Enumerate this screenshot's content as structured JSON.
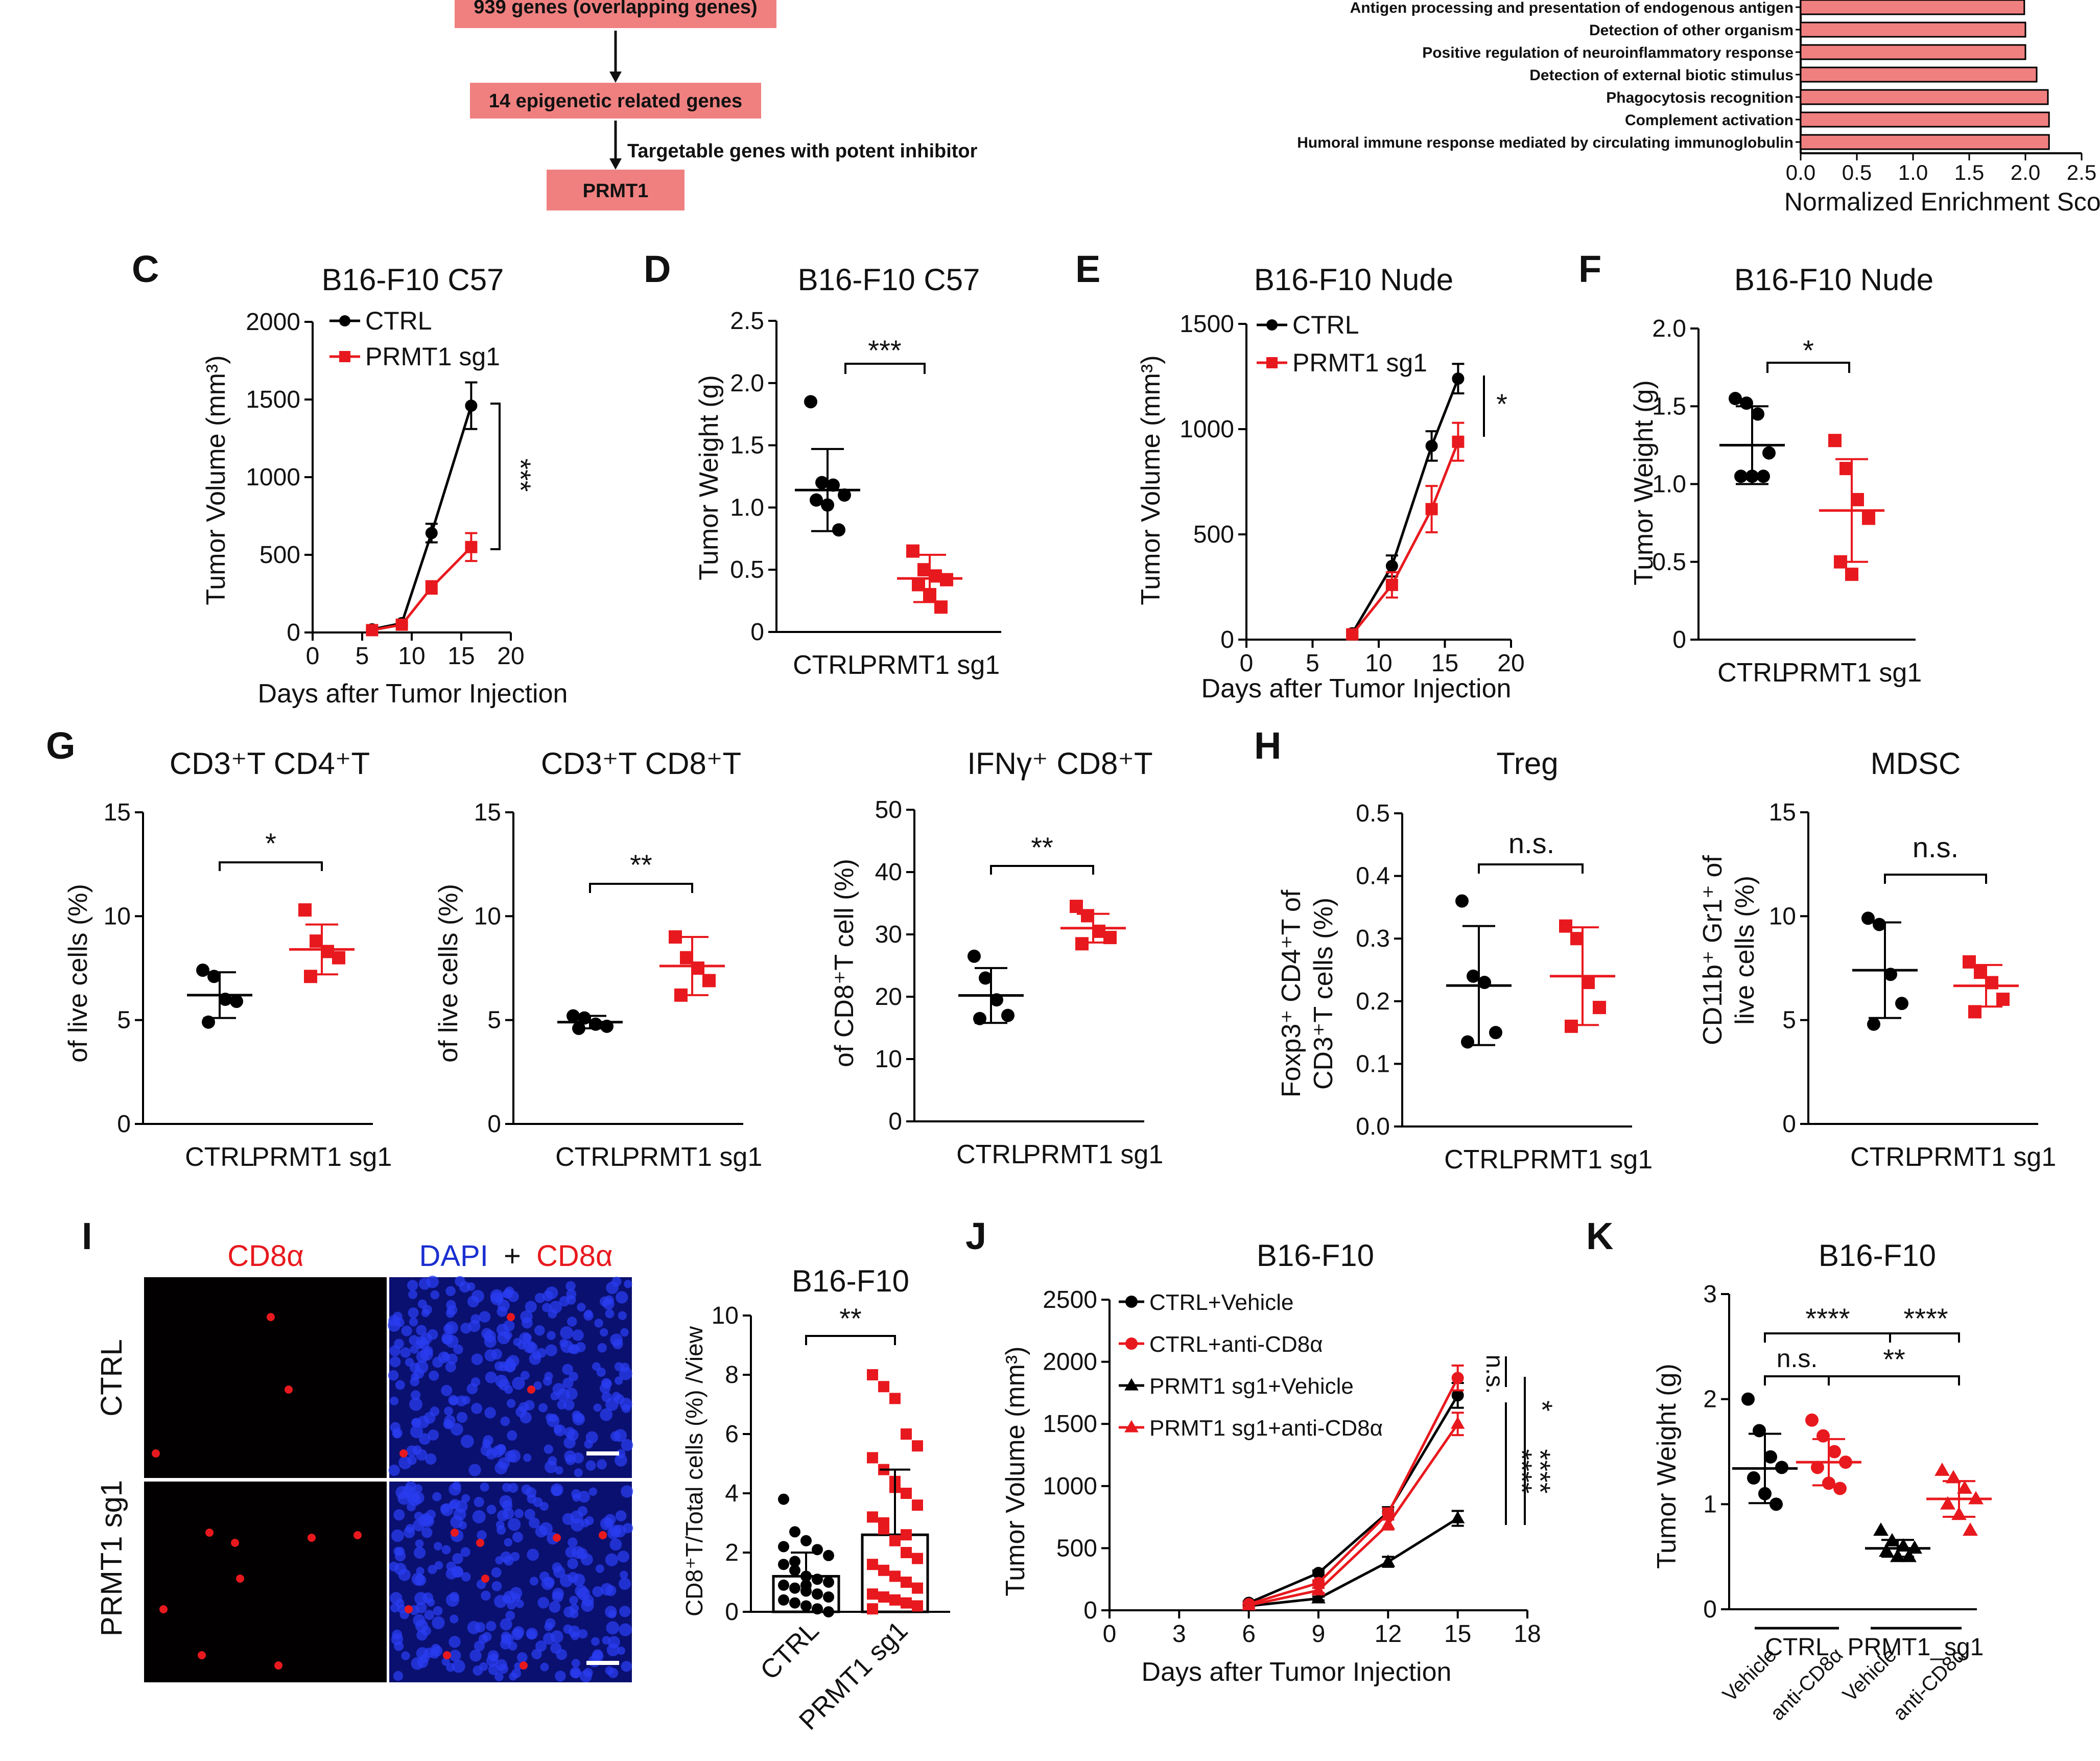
{
  "colors": {
    "ctrl": "#000000",
    "prmt1": "#e8191e",
    "flow_box": "#f08080",
    "gsea_bar": "#f08080",
    "dapi": "#1a2fd0",
    "cd8": "#e8191e"
  },
  "flow": {
    "boxes": [
      "939 genes (overlapping genes)",
      "14 epigenetic related genes",
      "PRMT1"
    ],
    "arrow_note": "Targetable genes with potent inhibitor"
  },
  "panels": {
    "C": {
      "letter": "C",
      "title": "B16-F10 C57",
      "xlabel": "Days after Tumor Injection",
      "ylabel": "Tumor Volume (mm³)",
      "legend": [
        "CTRL",
        "PRMT1 sg1"
      ],
      "sig": "***"
    },
    "D": {
      "letter": "D",
      "title": "B16-F10 C57",
      "ylabel": "Tumor Weight (g)",
      "sig": "***"
    },
    "E": {
      "letter": "E",
      "title": "B16-F10 Nude",
      "xlabel": "Days after Tumor Injection",
      "ylabel": "Tumor Volume (mm³)",
      "legend": [
        "CTRL",
        "PRMT1 sg1"
      ],
      "sig": "*"
    },
    "F": {
      "letter": "F",
      "title": "B16-F10 Nude",
      "ylabel": "Tumor Weight (g)",
      "sig": "*"
    },
    "G": {
      "letter": "G",
      "titles": [
        "CD3⁺T CD4⁺T",
        "CD3⁺T CD8⁺T",
        "IFNγ⁺ CD8⁺T"
      ],
      "ylabels": [
        "of live cells (%)",
        "of live cells (%)",
        "of CD8⁺T cell (%)"
      ],
      "sigs": [
        "*",
        "**",
        "**"
      ]
    },
    "H": {
      "letter": "H",
      "titles": [
        "Treg",
        "MDSC"
      ],
      "ylabels": [
        [
          "Foxp3⁺ CD4⁺T of",
          "CD3⁺T cells (%)"
        ],
        [
          "CD11b⁺ Gr1⁺ of",
          "live cells (%)"
        ]
      ],
      "sigs": [
        "n.s.",
        "n.s."
      ]
    },
    "I": {
      "letter": "I",
      "col_labels": [
        "CD8α",
        "DAPI",
        "+",
        "CD8α"
      ],
      "row_labels": [
        "CTRL",
        "PRMT1 sg1"
      ],
      "bar_title": "B16-F10",
      "bar_ylabel": "CD8⁺T/Total cells (%) /View",
      "sig": "**"
    },
    "J": {
      "letter": "J",
      "title": "B16-F10",
      "xlabel": "Days after Tumor Injection",
      "ylabel": "Tumor Volume (mm³)",
      "legend": [
        "CTRL+Vehicle",
        "CTRL+anti-CD8α",
        "PRMT1 sg1+Vehicle",
        "PRMT1 sg1+anti-CD8α"
      ],
      "sigs": [
        "n.s.",
        "*",
        "****",
        "****"
      ]
    },
    "K": {
      "letter": "K",
      "title": "B16-F10",
      "ylabel": "Tumor Weight (g)",
      "group_labels": [
        "CTRL",
        "PRMT1_sg1"
      ],
      "sub_labels": [
        "Vehicle",
        "anti-CD8α",
        "Vehicle",
        "anti-CD8α"
      ],
      "sigs": [
        "****",
        "****",
        "n.s.",
        "**"
      ]
    }
  },
  "chart_data": [
    {
      "id": "B",
      "type": "bar",
      "orientation": "horizontal",
      "categories": [
        "Antigen processing and presentation of endogenous antigen",
        "Detection of other organism",
        "Positive regulation of neuroinflammatory response",
        "Detection of external biotic stimulus",
        "Phagocytosis recognition",
        "Complement activation",
        "Humoral immune response mediated by circulating immunoglobulin"
      ],
      "values": [
        1.99,
        2.0,
        2.0,
        2.1,
        2.2,
        2.21,
        2.21
      ],
      "xlabel": "Normalized Enrichment Score",
      "xlim": [
        0,
        2.5
      ],
      "xticks": [
        "0.0",
        "0.5",
        "1.0",
        "1.5",
        "2.0",
        "2.5"
      ]
    },
    {
      "id": "C",
      "type": "line",
      "title": "B16-F10 C57",
      "xlim": [
        0,
        20
      ],
      "ylim": [
        0,
        2000
      ],
      "xticks": [
        0,
        5,
        10,
        15,
        20
      ],
      "yticks": [
        0,
        500,
        1000,
        1500,
        2000
      ],
      "series": [
        {
          "name": "CTRL",
          "x": [
            6,
            9,
            12,
            16
          ],
          "y": [
            20,
            60,
            640,
            1460
          ],
          "err": [
            8,
            10,
            60,
            150
          ]
        },
        {
          "name": "PRMT1 sg1",
          "x": [
            6,
            9,
            12,
            16
          ],
          "y": [
            15,
            50,
            290,
            550
          ],
          "err": [
            6,
            10,
            40,
            90
          ]
        }
      ]
    },
    {
      "id": "D",
      "type": "scatter",
      "title": "B16-F10 C57",
      "categories": [
        "CTRL",
        "PRMT1 sg1"
      ],
      "ylim": [
        0,
        2.5
      ],
      "yticks": [
        "0",
        "0.5",
        "1.0",
        "1.5",
        "2.0",
        "2.5"
      ],
      "groups": [
        {
          "points": [
            1.85,
            1.2,
            1.18,
            1.1,
            1.06,
            1.02,
            0.82
          ],
          "mean": 1.14,
          "sd": 0.33
        },
        {
          "points": [
            0.65,
            0.5,
            0.45,
            0.42,
            0.38,
            0.3,
            0.2
          ],
          "mean": 0.43,
          "sd": 0.19
        }
      ]
    },
    {
      "id": "E",
      "type": "line",
      "title": "B16-F10 Nude",
      "xlim": [
        0,
        20
      ],
      "ylim": [
        0,
        1500
      ],
      "xticks": [
        0,
        5,
        10,
        15,
        20
      ],
      "yticks": [
        0,
        500,
        1000,
        1500
      ],
      "series": [
        {
          "name": "CTRL",
          "x": [
            8,
            11,
            14,
            16
          ],
          "y": [
            30,
            350,
            920,
            1240
          ],
          "err": [
            10,
            50,
            70,
            70
          ]
        },
        {
          "name": "PRMT1 sg1",
          "x": [
            8,
            11,
            14,
            16
          ],
          "y": [
            25,
            260,
            620,
            940
          ],
          "err": [
            10,
            60,
            110,
            90
          ]
        }
      ]
    },
    {
      "id": "F",
      "type": "scatter",
      "title": "B16-F10 Nude",
      "categories": [
        "CTRL",
        "PRMT1 sg1"
      ],
      "ylim": [
        0,
        2.0
      ],
      "yticks": [
        "0",
        "0.5",
        "1.0",
        "1.5",
        "2.0"
      ],
      "groups": [
        {
          "points": [
            1.55,
            1.52,
            1.45,
            1.2,
            1.05,
            1.05,
            1.05
          ],
          "mean": 1.25,
          "sd": 0.25
        },
        {
          "points": [
            1.28,
            1.1,
            0.9,
            0.78,
            0.5,
            0.42
          ],
          "mean": 0.83,
          "sd": 0.33
        }
      ]
    },
    {
      "id": "G1",
      "type": "scatter",
      "title": "CD3⁺T CD4⁺T",
      "categories": [
        "CTRL",
        "PRMT1 sg1"
      ],
      "ylim": [
        0,
        15
      ],
      "yticks": [
        "0",
        "5",
        "10",
        "15"
      ],
      "groups": [
        {
          "points": [
            7.4,
            7.1,
            6.0,
            5.9,
            4.9
          ],
          "mean": 6.2,
          "sd": 1.1
        },
        {
          "points": [
            10.3,
            8.8,
            8.3,
            8.0,
            7.1
          ],
          "mean": 8.4,
          "sd": 1.2
        }
      ]
    },
    {
      "id": "G2",
      "type": "scatter",
      "title": "CD3⁺T CD8⁺T",
      "categories": [
        "CTRL",
        "PRMT1 sg1"
      ],
      "ylim": [
        0,
        15
      ],
      "yticks": [
        "0",
        "5",
        "10",
        "15"
      ],
      "groups": [
        {
          "points": [
            5.2,
            5.1,
            4.8,
            4.7,
            4.6
          ],
          "mean": 4.9,
          "sd": 0.3
        },
        {
          "points": [
            9.0,
            8.0,
            7.5,
            6.9,
            6.2
          ],
          "mean": 7.6,
          "sd": 1.4
        }
      ]
    },
    {
      "id": "G3",
      "type": "scatter",
      "title": "IFNγ⁺ CD8⁺T",
      "categories": [
        "CTRL",
        "PRMT1 sg1"
      ],
      "ylim": [
        0,
        50
      ],
      "yticks": [
        "0",
        "10",
        "20",
        "30",
        "40",
        "50"
      ],
      "groups": [
        {
          "points": [
            26.5,
            23.0,
            19.5,
            17.0,
            16.5
          ],
          "mean": 20.2,
          "sd": 4.4
        },
        {
          "points": [
            34.5,
            33.0,
            30.5,
            29.5,
            28.5
          ],
          "mean": 31.0,
          "sd": 2.3
        }
      ]
    },
    {
      "id": "H1",
      "type": "scatter",
      "title": "Treg",
      "categories": [
        "CTRL",
        "PRMT1 sg1"
      ],
      "ylim": [
        0,
        0.5
      ],
      "yticks": [
        "0.0",
        "0.1",
        "0.2",
        "0.3",
        "0.4",
        "0.5"
      ],
      "groups": [
        {
          "points": [
            0.36,
            0.24,
            0.23,
            0.15,
            0.135
          ],
          "mean": 0.225,
          "sd": 0.095
        },
        {
          "points": [
            0.32,
            0.3,
            0.23,
            0.19,
            0.16
          ],
          "mean": 0.24,
          "sd": 0.078
        }
      ]
    },
    {
      "id": "H2",
      "type": "scatter",
      "title": "MDSC",
      "categories": [
        "CTRL",
        "PRMT1 sg1"
      ],
      "ylim": [
        0,
        15
      ],
      "yticks": [
        "0",
        "5",
        "10",
        "15"
      ],
      "groups": [
        {
          "points": [
            9.9,
            9.6,
            7.2,
            5.8,
            4.8
          ],
          "mean": 7.4,
          "sd": 2.3
        },
        {
          "points": [
            7.8,
            7.3,
            6.8,
            6.0,
            5.4
          ],
          "mean": 6.65,
          "sd": 1.0
        }
      ]
    },
    {
      "id": "I",
      "type": "bar",
      "title": "B16-F10",
      "categories": [
        "CTRL",
        "PRMT1 sg1"
      ],
      "ylim": [
        0,
        10
      ],
      "yticks": [
        "0",
        "2",
        "4",
        "6",
        "8",
        "10"
      ],
      "values": [
        1.2,
        2.6
      ],
      "sd": [
        0.8,
        2.2
      ],
      "points": [
        [
          3.8,
          2.7,
          2.4,
          2.1,
          1.9,
          1.6,
          1.4,
          1.2,
          1.1,
          1.0,
          0.9,
          0.8,
          0.7,
          0.6,
          0.5,
          0.4,
          0.3,
          0.2,
          0.1,
          0.0,
          2.2,
          1.7,
          0.9,
          0.6
        ],
        [
          8.0,
          7.6,
          7.2,
          6.0,
          5.6,
          5.2,
          4.8,
          4.4,
          4.0,
          3.6,
          3.2,
          2.8,
          2.4,
          2.0,
          1.8,
          1.6,
          1.4,
          1.2,
          1.0,
          0.8,
          0.6,
          0.5,
          0.4,
          0.3,
          0.2,
          0.1,
          3.0,
          4.2,
          2.6
        ]
      ]
    },
    {
      "id": "J",
      "type": "line",
      "title": "B16-F10",
      "xlim": [
        0,
        18
      ],
      "ylim": [
        0,
        2500
      ],
      "xticks": [
        0,
        3,
        6,
        9,
        12,
        15,
        18
      ],
      "yticks": [
        0,
        500,
        1000,
        1500,
        2000,
        2500
      ],
      "series": [
        {
          "name": "CTRL+Vehicle",
          "x": [
            6,
            9,
            12,
            15
          ],
          "y": [
            60,
            300,
            790,
            1730
          ],
          "err": [
            10,
            20,
            40,
            100
          ]
        },
        {
          "name": "CTRL+anti-CD8α",
          "x": [
            6,
            9,
            12,
            15
          ],
          "y": [
            50,
            220,
            780,
            1870
          ],
          "err": [
            10,
            20,
            40,
            100
          ]
        },
        {
          "name": "PRMT1 sg1+Vehicle",
          "x": [
            6,
            9,
            12,
            15
          ],
          "y": [
            35,
            95,
            390,
            740
          ],
          "err": [
            10,
            15,
            40,
            60
          ]
        },
        {
          "name": "PRMT1 sg1+anti-CD8α",
          "x": [
            6,
            9,
            12,
            15
          ],
          "y": [
            40,
            160,
            690,
            1500
          ],
          "err": [
            10,
            20,
            40,
            90
          ]
        }
      ]
    },
    {
      "id": "K",
      "type": "scatter",
      "title": "B16-F10",
      "ylim": [
        0,
        3
      ],
      "yticks": [
        "0",
        "1",
        "2",
        "3"
      ],
      "groups": [
        {
          "points": [
            2.0,
            1.7,
            1.45,
            1.35,
            1.25,
            1.1,
            1.0
          ],
          "mean": 1.34,
          "sd": 0.33
        },
        {
          "points": [
            1.8,
            1.65,
            1.5,
            1.4,
            1.35,
            1.2,
            1.15
          ],
          "mean": 1.4,
          "sd": 0.22
        },
        {
          "points": [
            0.75,
            0.65,
            0.6,
            0.58,
            0.55,
            0.5,
            0.5
          ],
          "mean": 0.58,
          "sd": 0.08
        },
        {
          "points": [
            1.32,
            1.25,
            1.15,
            1.05,
            1.0,
            0.9,
            0.75
          ],
          "mean": 1.05,
          "sd": 0.17
        }
      ]
    }
  ]
}
